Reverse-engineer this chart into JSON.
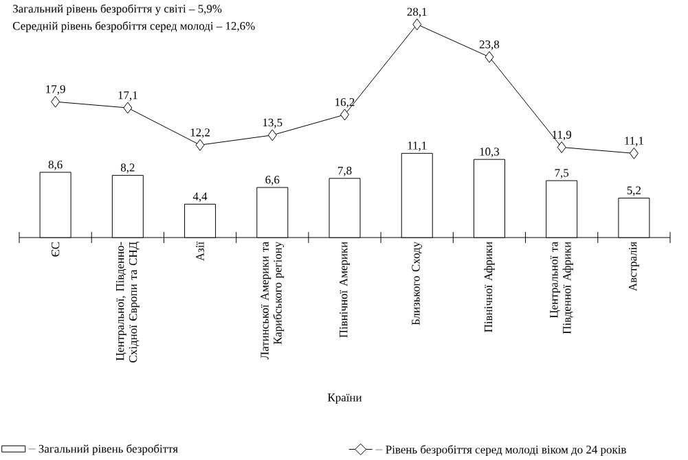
{
  "chart_data": {
    "type": "bar",
    "xlabel": "Країни",
    "annotations": [
      "Загальний рівень безробіття у світі – 5,9%",
      "Середній рівень безробіття серед молоді – 12,6%"
    ],
    "categories": [
      "ЄС",
      "Центральної, Південно-Східної Європи та СНД",
      "Азії",
      "Латинської Америки та Карибського регіону",
      "Північної Америки",
      "Близького Сходу",
      "Північної Африки",
      "Центральної та Південної Африки",
      "Австралія"
    ],
    "series": [
      {
        "name": "Загальний рівень безробіття",
        "color": "#000000",
        "values": [
          8.6,
          8.2,
          4.4,
          6.6,
          7.8,
          11.1,
          10.3,
          7.5,
          5.2
        ],
        "value_labels": [
          "8,6",
          "8,2",
          "4,4",
          "6,6",
          "7,8",
          "11,1",
          "10,3",
          "7,5",
          "5,2"
        ]
      },
      {
        "name": "Рівень безробіття серед молоді віком до 24 років",
        "type": "line",
        "marker": "diamond",
        "color": "#000000",
        "values": [
          17.9,
          17.1,
          12.2,
          13.5,
          16.2,
          28.1,
          23.8,
          11.9,
          11.1
        ],
        "value_labels": [
          "17,9",
          "17,1",
          "12,2",
          "13,5",
          "16,2",
          "28,1",
          "23,8",
          "11,9",
          "11,1"
        ]
      }
    ],
    "legend": "bottom"
  }
}
